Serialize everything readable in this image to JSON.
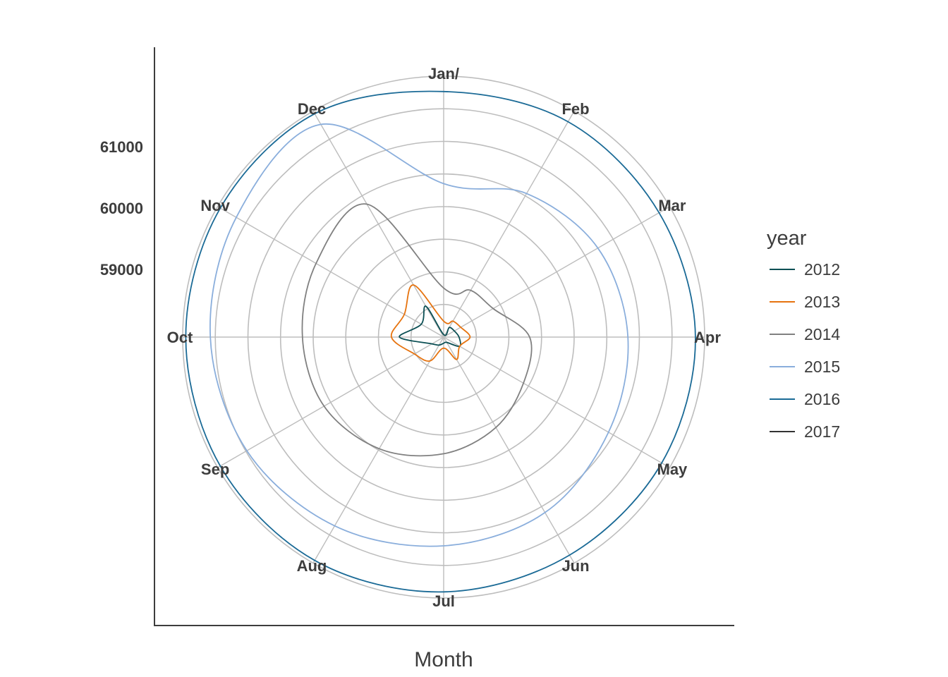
{
  "chart_data": {
    "type": "line",
    "coordinate_system": "polar",
    "xlabel": "Month",
    "ylabel": "",
    "y_ticks": [
      "59000",
      "60000",
      "61000"
    ],
    "y_tick_values": [
      59000,
      60000,
      61000
    ],
    "rlim": [
      57900,
      62150
    ],
    "grid": true,
    "months": [
      "Jan/",
      "Feb",
      "Mar",
      "Apr",
      "May",
      "Jun",
      "Jul",
      "Aug",
      "Sep",
      "Oct",
      "Nov",
      "Dec"
    ],
    "legend": {
      "title": "year",
      "position": "right"
    },
    "series": [
      {
        "name": "2012",
        "color": "#0b4f54",
        "values": [
          57940,
          58080,
          58100,
          58150,
          58200,
          58000,
          58000,
          58050,
          58120,
          58620,
          58320,
          58480
        ]
      },
      {
        "name": "2013",
        "color": "#e6730f",
        "values": [
          58160,
          58200,
          58220,
          58330,
          58200,
          58320,
          58080,
          58350,
          58450,
          58750,
          58640,
          58880
        ]
      },
      {
        "name": "2014",
        "color": "#808080",
        "values": [
          58700,
          58780,
          58830,
          59300,
          59400,
          59600,
          59800,
          60000,
          60150,
          60200,
          60300,
          60400
        ]
      },
      {
        "name": "2015",
        "color": "#8aaedc",
        "values": [
          60400,
          60600,
          60800,
          60900,
          61000,
          61200,
          61300,
          61450,
          61600,
          61700,
          61800,
          61900
        ]
      },
      {
        "name": "2016",
        "color": "#1a6a96",
        "values": [
          61900,
          61950,
          61950,
          62000,
          62000,
          62000,
          62050,
          62100,
          62100,
          62100,
          62100,
          62100
        ]
      },
      {
        "name": "2017",
        "color": "#333333",
        "values": []
      }
    ]
  }
}
